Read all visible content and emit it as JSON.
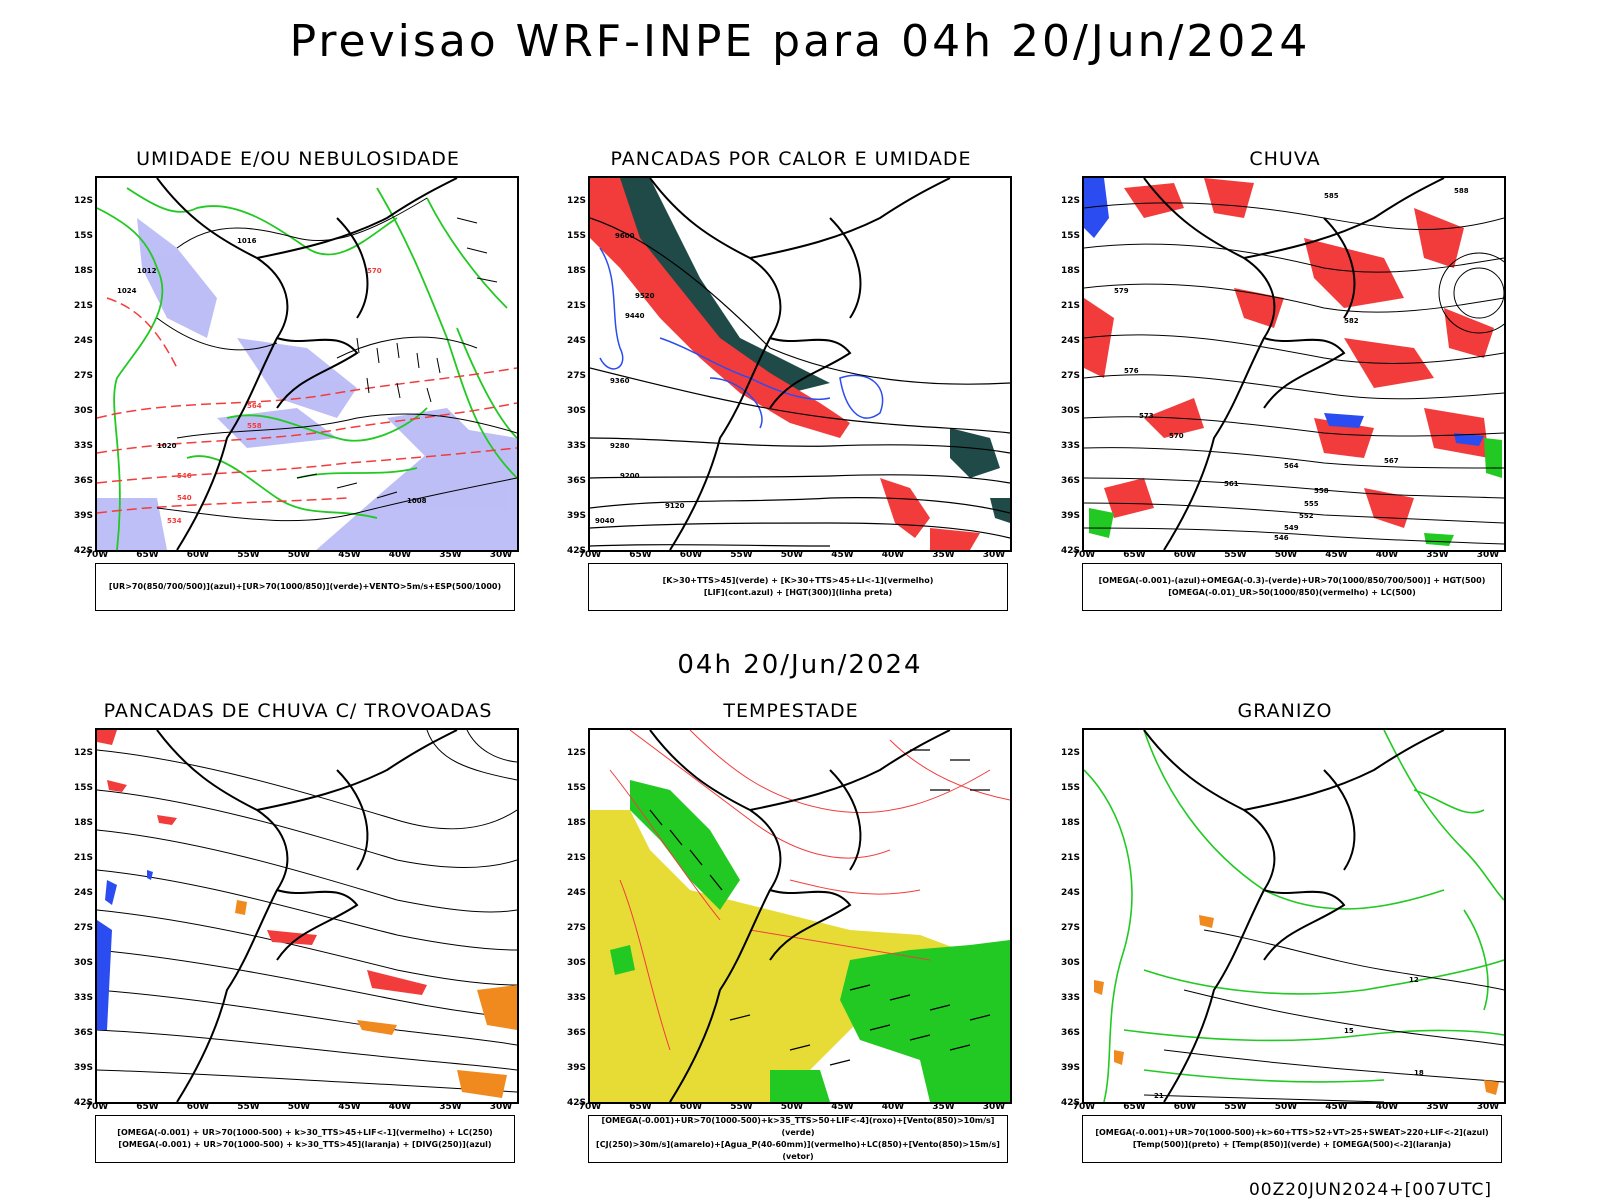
{
  "title": "Previsao WRF-INPE  para 04h 20/Jun/2024",
  "subtitle": "04h 20/Jun/2024",
  "run_stamp": "00Z20JUN2024+[007UTC]",
  "axes": {
    "latitudes": [
      "12S",
      "15S",
      "18S",
      "21S",
      "24S",
      "27S",
      "30S",
      "33S",
      "36S",
      "39S",
      "42S"
    ],
    "longitudes": [
      "70W",
      "65W",
      "60W",
      "55W",
      "50W",
      "45W",
      "40W",
      "35W",
      "30W"
    ]
  },
  "panels": [
    {
      "title": "UMIDADE E/OU NEBULOSIDADE",
      "legend": [
        "[UR>70(850/700/500)](azul)+[UR>70(1000/850)](verde)+VENTO>5m/s+ESP(500/1000)"
      ],
      "labels": [
        "1016",
        "1012",
        "1020",
        "1024",
        "570",
        "564",
        "558",
        "546",
        "540",
        "534",
        "1008"
      ]
    },
    {
      "title": "PANCADAS POR CALOR E UMIDADE",
      "legend": [
        "[K>30+TTS>45](verde) + [K>30+TTS>45+LI<-1](vermelho)",
        "[LIF](cont.azul) + [HGT(300)](linha preta)"
      ],
      "labels": [
        "9600",
        "9520",
        "9440",
        "9360",
        "9280",
        "9200",
        "9120",
        "9040"
      ]
    },
    {
      "title": "CHUVA",
      "legend": [
        "[OMEGA(-0.001)-(azul)+OMEGA(-0.3)-(verde)+UR>70(1000/850/700/500)] + HGT(500)",
        "[OMEGA(-0.01)_UR>50(1000/850)(vermelho) + LC(500)"
      ],
      "labels": [
        "588",
        "585",
        "582",
        "579",
        "576",
        "573",
        "570",
        "567",
        "564",
        "561",
        "558",
        "555",
        "552",
        "549",
        "546"
      ]
    },
    {
      "title": "PANCADAS DE CHUVA C/ TROVOADAS",
      "legend": [
        "[OMEGA(-0.001) + UR>70(1000-500) + k>30_TTS>45+LIF<-1](vermelho) + LC(250)",
        "[OMEGA(-0.001) + UR>70(1000-500) + k>30_TTS>45](laranja) + [DIVG(250)](azul)"
      ],
      "labels": []
    },
    {
      "title": "TEMPESTADE",
      "legend": [
        "[OMEGA(-0.001)+UR>70(1000-500)+k>35_TTS>50+LIF<-4](roxo)+[Vento(850)>10m/s](verde)",
        "[CJ(250)>30m/s](amarelo)+[Agua_P(40-60mm)](vermelho)+LC(850)+[Vento(850)>15m/s](vetor)"
      ],
      "labels": []
    },
    {
      "title": "GRANIZO",
      "legend": [
        "[OMEGA(-0.001)+UR>70(1000-500)+k>60+TTS>52+VT>25+SWEAT>220+LIF<-2](azul)",
        "[Temp(500)](preto) + [Temp(850)](verde) + [OMEGA(500)<-2](laranja)"
      ],
      "labels": [
        "12",
        "15",
        "18",
        "21"
      ]
    }
  ],
  "colors": {
    "black": "#000000",
    "green": "#22c922",
    "red": "#f23c3c",
    "blue": "#2b4cf0",
    "lavender": "#a9a9f5",
    "dark_teal": "#1f4a48",
    "yellow": "#e6dc35",
    "orange": "#f08a1e"
  }
}
